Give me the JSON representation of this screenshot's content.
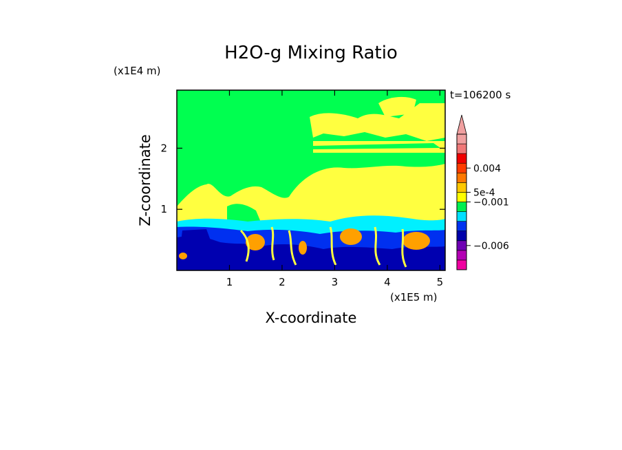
{
  "chart_data": {
    "type": "heatmap",
    "title": "H2O-g Mixing Ratio",
    "xlabel": "X-coordinate",
    "ylabel": "Z-coordinate",
    "x_unit": "(x1E5 m)",
    "y_unit": "(x1E4 m)",
    "time_label": "t=106200 s",
    "xlim": [
      0.0,
      5.1
    ],
    "ylim": [
      0.0,
      2.95
    ],
    "x_ticks": [
      "1",
      "2",
      "3",
      "4",
      "5"
    ],
    "y_ticks": [
      "1",
      "2"
    ],
    "colorbar": {
      "colors": [
        "#f000a0",
        "#b400b4",
        "#6e00b4",
        "#0000aa",
        "#0032f0",
        "#00e0ff",
        "#00f050",
        "#ffff00",
        "#ffc800",
        "#ff7800",
        "#ff3c00",
        "#f00000",
        "#f07878",
        "#f0a0a0"
      ],
      "labels": [
        {
          "text": "0.004",
          "level": 10.5
        },
        {
          "text": "5e-4",
          "level": 8
        },
        {
          "text": "−0.001",
          "level": 7
        },
        {
          "text": "−0.006",
          "level": 2.5
        }
      ]
    },
    "field_regions": [
      {
        "level": "#00ff50",
        "shape": "background"
      },
      {
        "level": "#ffff40",
        "shape": "upper-right bands above x=2.6"
      },
      {
        "level": "#ffff40",
        "shape": "lower band z 0.8-1.8"
      },
      {
        "level": "#00ffff",
        "shape": "band z 0.6-0.85"
      },
      {
        "level": "#0000c0",
        "shape": "boundary layer z 0-0.8"
      },
      {
        "level": "#ffa000",
        "shape": "plumes near x 1.5, 2.5, 3.3, 4.5"
      }
    ]
  }
}
